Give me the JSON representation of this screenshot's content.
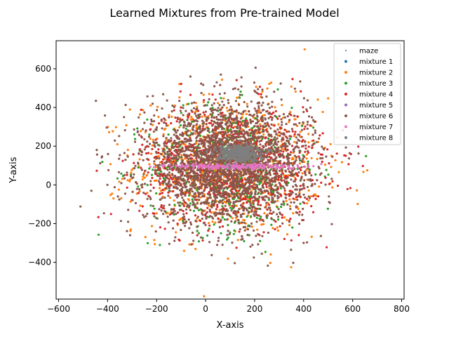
{
  "chart_data": {
    "type": "scatter",
    "title": "Learned Mixtures from Pre-trained Model",
    "xlabel": "X-axis",
    "ylabel": "Y-axis",
    "xlim": [
      -610,
      810
    ],
    "ylim": [
      -590,
      745
    ],
    "xticks": [
      -600,
      -400,
      -200,
      0,
      200,
      400,
      600,
      800
    ],
    "xtick_labels": [
      "−600",
      "−400",
      "−200",
      "0",
      "200",
      "400",
      "600",
      "800"
    ],
    "yticks": [
      -400,
      -200,
      0,
      200,
      400,
      600
    ],
    "ytick_labels": [
      "−400",
      "−200",
      "0",
      "200",
      "400",
      "600"
    ],
    "grid": false,
    "legend_position": "top-right",
    "series": [
      {
        "name": "maze",
        "color": "#1f77b4",
        "marker": "tiny",
        "center": [
          80,
          150
        ],
        "spread": [
          20,
          20
        ],
        "approx_points": 0
      },
      {
        "name": "mixture 1",
        "color": "#1f77b4",
        "center": [
          90,
          120
        ],
        "spread": [
          160,
          140
        ],
        "approx_points": 0
      },
      {
        "name": "mixture 2",
        "color": "#ff7f0e",
        "center": [
          90,
          100
        ],
        "spread": [
          190,
          175
        ],
        "approx_points": 900
      },
      {
        "name": "mixture 3",
        "color": "#2ca02c",
        "center": [
          110,
          80
        ],
        "spread": [
          170,
          160
        ],
        "approx_points": 500
      },
      {
        "name": "mixture 4",
        "color": "#d62728",
        "center": [
          110,
          110
        ],
        "spread": [
          185,
          150
        ],
        "approx_points": 900
      },
      {
        "name": "mixture 5",
        "color": "#9467bd",
        "center": [
          90,
          120
        ],
        "spread": [
          140,
          120
        ],
        "approx_points": 0
      },
      {
        "name": "mixture 6",
        "color": "#8c564b",
        "center": [
          85,
          110
        ],
        "spread": [
          165,
          150
        ],
        "approx_points": 2600
      },
      {
        "name": "mixture 7",
        "color": "#e377c2",
        "center": [
          130,
          95
        ],
        "spread": [
          125,
          7
        ],
        "approx_points": 250
      },
      {
        "name": "mixture 8",
        "color": "#7f7f7f",
        "center": [
          130,
          165
        ],
        "spread": [
          45,
          22
        ],
        "approx_points": 400
      }
    ]
  }
}
